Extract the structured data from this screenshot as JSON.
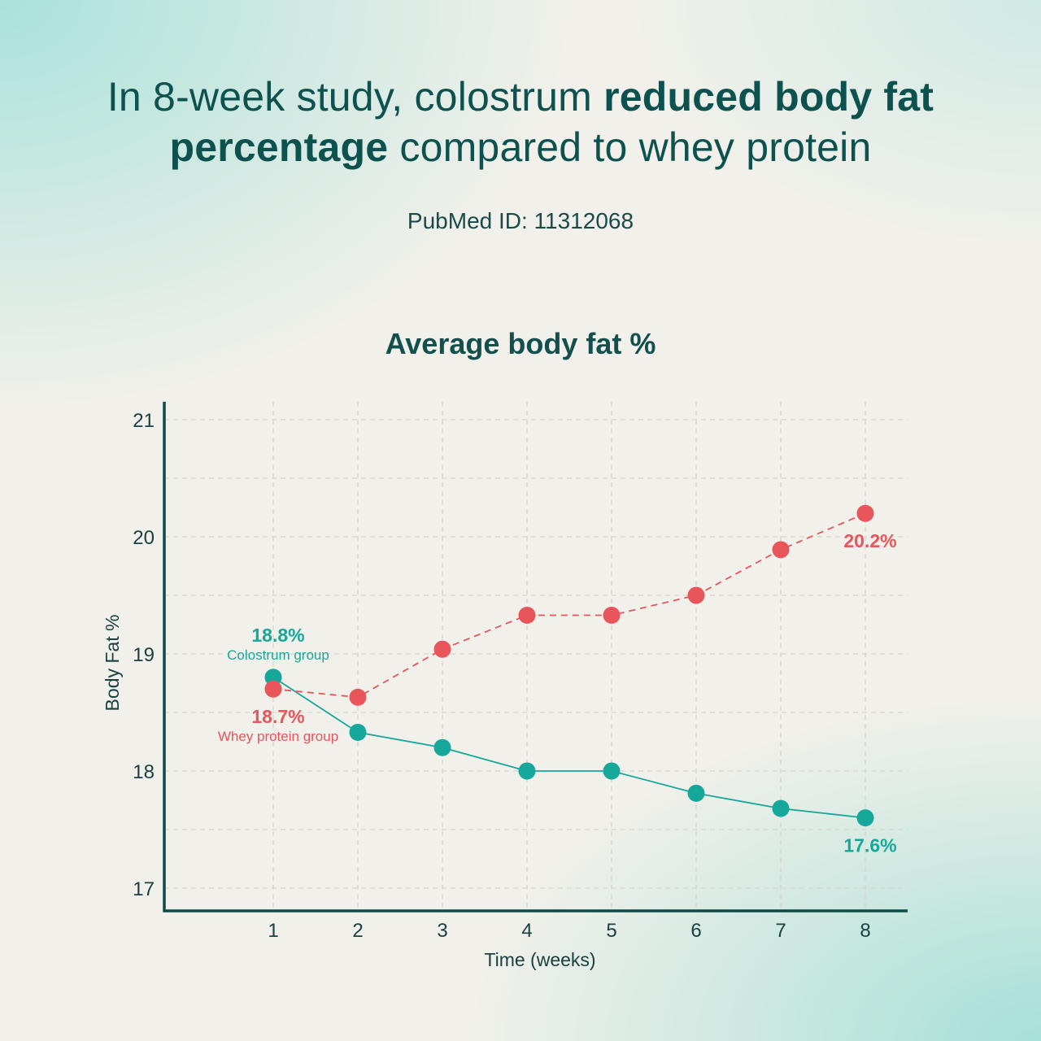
{
  "headline": {
    "part1": "In 8-week study, colostrum ",
    "bold1": "reduced body fat",
    "bold2": "percentage",
    "part2": " compared to whey protein"
  },
  "pubmed": "PubMed ID: 11312068",
  "colors": {
    "colostrum": "#15a89a",
    "whey": "#e8555a",
    "axis": "#0f4a48",
    "grid": "#d6d6d0",
    "text": "#0e5250"
  },
  "chart_data": {
    "type": "line",
    "title": "Average body fat %",
    "xlabel": "Time (weeks)",
    "ylabel": "Body Fat %",
    "x": [
      1,
      2,
      3,
      4,
      5,
      6,
      7,
      8
    ],
    "xticks": [
      "1",
      "2",
      "3",
      "4",
      "5",
      "6",
      "7",
      "8"
    ],
    "yticks": [
      "17",
      "18",
      "19",
      "20",
      "21"
    ],
    "ylim": [
      17,
      21
    ],
    "xlim": [
      -0.3,
      8.5
    ],
    "grid": true,
    "grid_step": 0.5,
    "series": [
      {
        "name": "Colostrum group",
        "color": "#15a89a",
        "line_style": "solid",
        "values": [
          18.8,
          18.33,
          18.2,
          18.0,
          18.0,
          17.81,
          17.68,
          17.6
        ]
      },
      {
        "name": "Whey protein group",
        "color": "#e8555a",
        "line_style": "dashed",
        "values": [
          18.7,
          18.63,
          19.04,
          19.33,
          19.33,
          19.5,
          19.89,
          20.2
        ]
      }
    ],
    "annotations": [
      {
        "series": "Colostrum group",
        "x": 1,
        "value_label": "18.8%",
        "sub_label": "Colostrum group",
        "position": "above"
      },
      {
        "series": "Whey protein group",
        "x": 1,
        "value_label": "18.7%",
        "sub_label": "Whey protein group",
        "position": "below"
      },
      {
        "series": "Whey protein group",
        "x": 8,
        "value_label": "20.2%",
        "position": "below"
      },
      {
        "series": "Colostrum group",
        "x": 8,
        "value_label": "17.6%",
        "position": "below"
      }
    ]
  }
}
